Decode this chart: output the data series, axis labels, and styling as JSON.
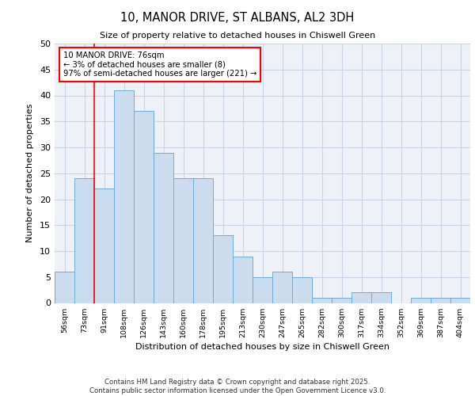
{
  "title_line1": "10, MANOR DRIVE, ST ALBANS, AL2 3DH",
  "title_line2": "Size of property relative to detached houses in Chiswell Green",
  "xlabel": "Distribution of detached houses by size in Chiswell Green",
  "ylabel": "Number of detached properties",
  "categories": [
    "56sqm",
    "73sqm",
    "91sqm",
    "108sqm",
    "126sqm",
    "143sqm",
    "160sqm",
    "178sqm",
    "195sqm",
    "213sqm",
    "230sqm",
    "247sqm",
    "265sqm",
    "282sqm",
    "300sqm",
    "317sqm",
    "334sqm",
    "352sqm",
    "369sqm",
    "387sqm",
    "404sqm"
  ],
  "values": [
    6,
    24,
    22,
    41,
    37,
    29,
    24,
    24,
    13,
    9,
    5,
    6,
    5,
    1,
    1,
    2,
    2,
    0,
    1,
    1,
    1
  ],
  "bar_color": "#ccdcef",
  "bar_edge_color": "#6baed6",
  "red_line_x": 1.5,
  "annotation_line1": "10 MANOR DRIVE: 76sqm",
  "annotation_line2": "← 3% of detached houses are smaller (8)",
  "annotation_line3": "97% of semi-detached houses are larger (221) →",
  "annotation_box_color": "white",
  "annotation_box_edge": "red",
  "ylim": [
    0,
    50
  ],
  "yticks": [
    0,
    5,
    10,
    15,
    20,
    25,
    30,
    35,
    40,
    45,
    50
  ],
  "background_color": "#eef2f8",
  "grid_color": "#c8d4e8",
  "footer_line1": "Contains HM Land Registry data © Crown copyright and database right 2025.",
  "footer_line2": "Contains public sector information licensed under the Open Government Licence v3.0."
}
